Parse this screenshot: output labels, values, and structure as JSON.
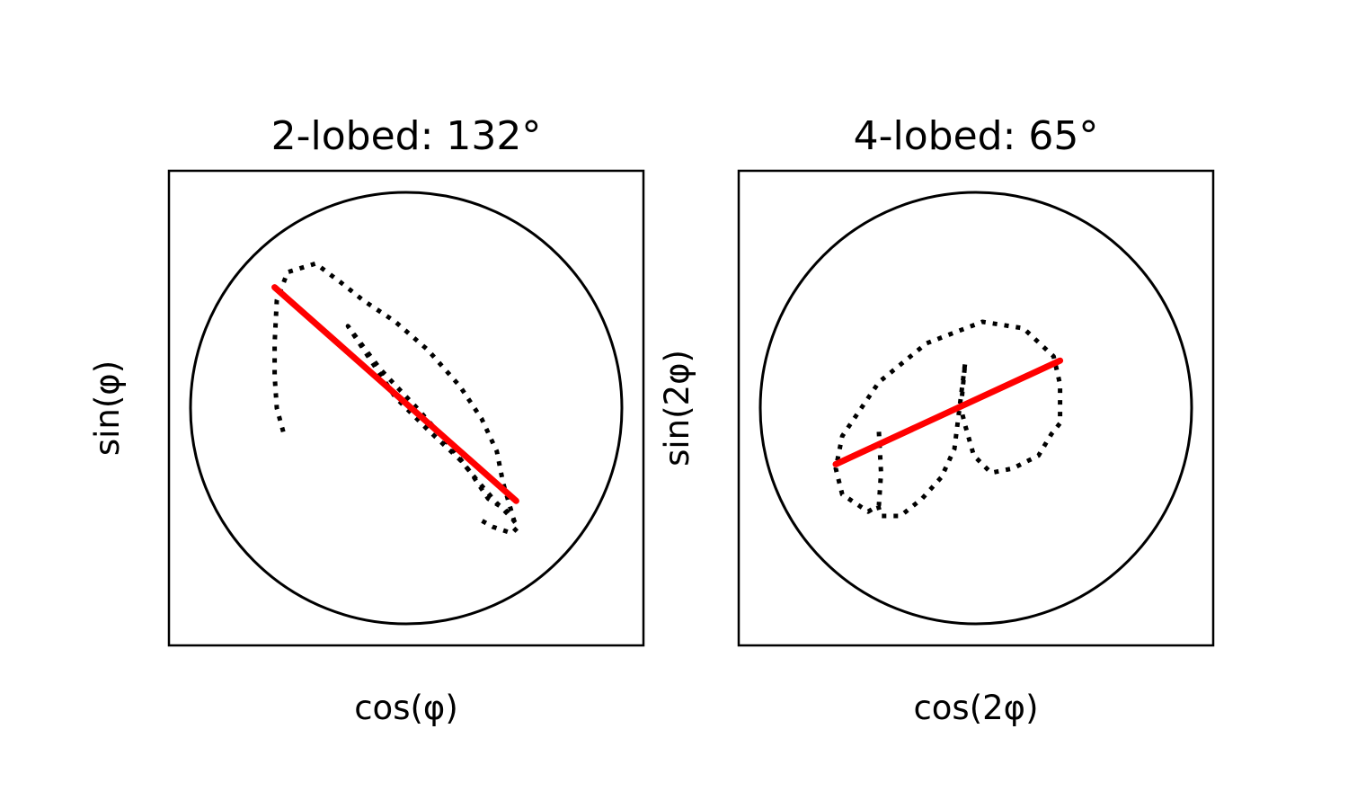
{
  "chart_data": [
    {
      "type": "line",
      "title": "2-lobed: 132°",
      "xlabel": "cos(φ)",
      "ylabel": "sin(φ)",
      "xlim": [
        -1.1,
        1.1
      ],
      "ylim": [
        -1.1,
        1.1
      ],
      "ticks": "none",
      "grid": false,
      "reference_circle_radius": 1.0,
      "series": [
        {
          "style": "dotted",
          "color": "#000000",
          "x": [
            -0.57,
            -0.6,
            -0.61,
            -0.61,
            -0.6,
            -0.55,
            -0.42,
            -0.3,
            -0.2,
            -0.05,
            0.1,
            0.25,
            0.35,
            0.42,
            0.45,
            0.5,
            0.42,
            0.35,
            0.25,
            0.1,
            -0.05,
            -0.27,
            -0.12,
            0.05,
            0.2,
            0.3,
            0.38,
            0.46,
            0.52,
            0.49,
            0.4,
            0.33
          ],
          "y": [
            -0.11,
            0.0,
            0.15,
            0.3,
            0.5,
            0.63,
            0.67,
            0.58,
            0.5,
            0.4,
            0.27,
            0.1,
            -0.05,
            -0.2,
            -0.35,
            -0.52,
            -0.44,
            -0.36,
            -0.24,
            -0.1,
            0.05,
            0.38,
            0.18,
            0.0,
            -0.17,
            -0.3,
            -0.42,
            -0.47,
            -0.55,
            -0.58,
            -0.55,
            -0.51
          ]
        },
        {
          "style": "solid",
          "color": "#ff0000",
          "x": [
            -0.61,
            0.51
          ],
          "y": [
            0.56,
            -0.43
          ]
        }
      ]
    },
    {
      "type": "line",
      "title": "4-lobed: 65°",
      "xlabel": "cos(2φ)",
      "ylabel": "sin(2φ)",
      "xlim": [
        -1.1,
        1.1
      ],
      "ylim": [
        -1.1,
        1.1
      ],
      "ticks": "none",
      "grid": false,
      "reference_circle_radius": 1.0,
      "series": [
        {
          "style": "dotted",
          "color": "#000000",
          "x": [
            -0.45,
            -0.44,
            -0.45,
            -0.5,
            -0.62,
            -0.65,
            -0.62,
            -0.45,
            -0.23,
            0.03,
            0.22,
            0.36,
            0.39,
            0.39,
            0.35,
            0.29,
            0.17,
            0.07,
            -0.01,
            -0.05,
            -0.07,
            -0.05,
            -0.1,
            -0.16,
            -0.25,
            -0.35,
            -0.44,
            -0.46
          ],
          "y": [
            -0.11,
            -0.3,
            -0.45,
            -0.48,
            -0.4,
            -0.28,
            -0.13,
            0.12,
            0.3,
            0.4,
            0.37,
            0.24,
            0.11,
            -0.07,
            -0.12,
            -0.22,
            -0.28,
            -0.3,
            -0.22,
            -0.08,
            0.0,
            0.21,
            -0.19,
            -0.32,
            -0.42,
            -0.5,
            -0.5,
            -0.43
          ]
        },
        {
          "style": "solid",
          "color": "#ff0000",
          "x": [
            -0.65,
            0.39
          ],
          "y": [
            -0.26,
            0.22
          ]
        }
      ]
    }
  ]
}
